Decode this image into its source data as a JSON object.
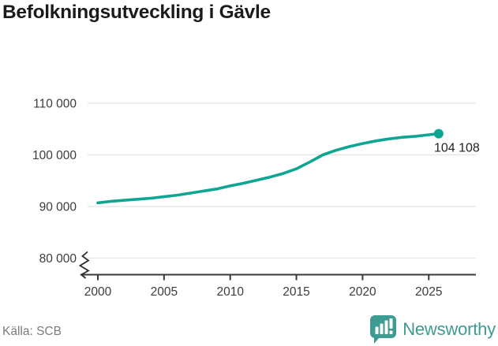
{
  "header": {
    "title": "Befolkningsutveckling i Gävle"
  },
  "chart_data": {
    "type": "line",
    "title": "Befolkningsutveckling i Gävle",
    "xlabel": "",
    "ylabel": "",
    "x": [
      2000,
      2001,
      2002,
      2003,
      2004,
      2005,
      2006,
      2007,
      2008,
      2009,
      2010,
      2011,
      2012,
      2013,
      2014,
      2015,
      2016,
      2017,
      2018,
      2019,
      2020,
      2021,
      2022,
      2023,
      2024,
      2025,
      2025.75
    ],
    "values": [
      90700,
      91000,
      91200,
      91400,
      91600,
      91900,
      92200,
      92600,
      93000,
      93400,
      94000,
      94500,
      95100,
      95700,
      96400,
      97300,
      98600,
      100000,
      100900,
      101600,
      102200,
      102700,
      103100,
      103400,
      103600,
      103900,
      104108
    ],
    "end_value": 104108,
    "end_label": "104 108",
    "y_ticks": [
      {
        "value": 110000,
        "label": "110 000"
      },
      {
        "value": 100000,
        "label": "100 000"
      },
      {
        "value": 90000,
        "label": "90 000"
      },
      {
        "value": 80000,
        "label": "80 000"
      }
    ],
    "x_ticks": [
      {
        "value": 2000,
        "label": "2000"
      },
      {
        "value": 2005,
        "label": "2005"
      },
      {
        "value": 2010,
        "label": "2010"
      },
      {
        "value": 2015,
        "label": "2015"
      },
      {
        "value": 2020,
        "label": "2020"
      },
      {
        "value": 2025,
        "label": "2025"
      }
    ],
    "ylim": [
      80000,
      113000
    ],
    "xlim": [
      2000,
      2026.5
    ],
    "axis_break": true,
    "grid": true,
    "legend": "none",
    "line_color": "#0ea592",
    "grid_color": "#e4e4e4",
    "axis_color": "#3a3a3a",
    "tick_label_color": "#3c3c3c",
    "end_label_color": "#222222"
  },
  "footer": {
    "source": "Källa: SCB",
    "brand": "Newsworthy",
    "brand_color": "#3e9b91"
  }
}
